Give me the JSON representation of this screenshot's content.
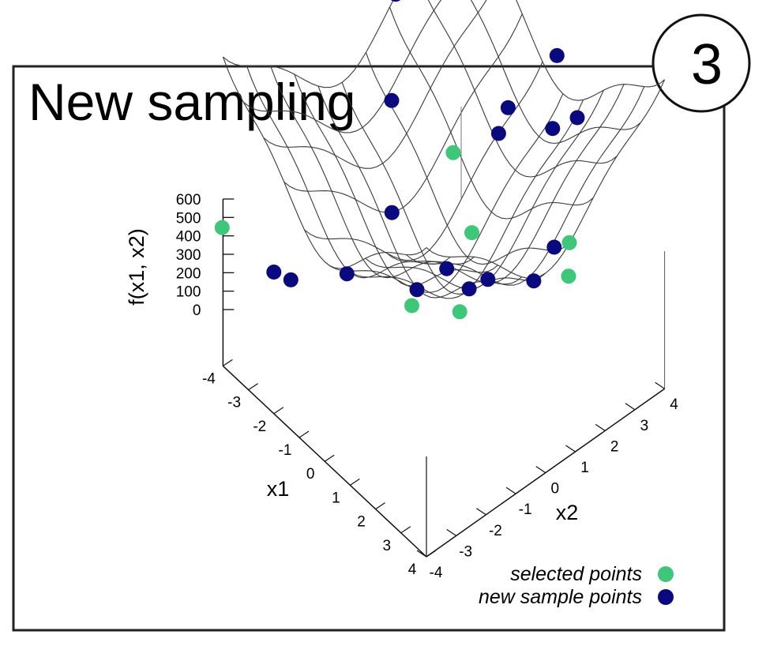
{
  "chart_data": {
    "type": "surface3d",
    "title": "New sampling",
    "badge": "3",
    "xlabel": "x1",
    "ylabel": "x2",
    "zlabel": "f(x1, x2)",
    "xlim": [
      -4,
      4
    ],
    "ylim": [
      -4,
      4
    ],
    "zlim": [
      0,
      600
    ],
    "x_ticks": [
      "-4",
      "-3",
      "-2",
      "-1",
      "0",
      "1",
      "2",
      "3",
      "4"
    ],
    "y_ticks": [
      "-4",
      "-3",
      "-2",
      "-1",
      "0",
      "1",
      "2",
      "3",
      "4"
    ],
    "z_ticks": [
      "600",
      "500",
      "400",
      "300",
      "200",
      "100",
      "0"
    ],
    "grid": true,
    "legend_position": "bottom-right",
    "colors": {
      "selected": "#3cc878",
      "new_sample": "#0a0a80",
      "mesh": "#333333"
    },
    "series": [
      {
        "name": "selected points",
        "color": "#3cc878",
        "points": [
          {
            "x1": -3.8,
            "x2": -4.2,
            "z": 120
          },
          {
            "x1": -1.5,
            "x2": 4.2,
            "z": 580
          },
          {
            "x1": -0.8,
            "x2": 1.0,
            "z": 250
          },
          {
            "x1": 0.4,
            "x2": 0.6,
            "z": 100
          },
          {
            "x1": 1.2,
            "x2": -2.1,
            "z": 110
          },
          {
            "x1": 2.5,
            "x2": -1.6,
            "z": 160
          },
          {
            "x1": 2.8,
            "x2": 1.8,
            "z": 60
          },
          {
            "x1": 4.0,
            "x2": 0.8,
            "z": 350
          }
        ]
      },
      {
        "name": "new sample points",
        "color": "#0a0a80",
        "points": [
          {
            "x1": -3.3,
            "x2": 1.2,
            "z": 580
          },
          {
            "x1": -2.4,
            "x2": 0.3,
            "z": 350
          },
          {
            "x1": -2.0,
            "x2": -4.0,
            "z": 100
          },
          {
            "x1": -1.8,
            "x2": -3.6,
            "z": 60
          },
          {
            "x1": -1.0,
            "x2": -2.4,
            "z": 60
          },
          {
            "x1": 0.7,
            "x2": -1.5,
            "z": 80
          },
          {
            "x1": 0.7,
            "x2": -0.5,
            "z": 80
          },
          {
            "x1": -0.4,
            "x2": -1.4,
            "z": 250
          },
          {
            "x1": 0.4,
            "x2": 1.5,
            "z": 380
          },
          {
            "x1": 1.7,
            "x2": -0.6,
            "z": 100
          },
          {
            "x1": 2.2,
            "x2": -0.4,
            "z": 160
          },
          {
            "x1": -0.4,
            "x2": 2.5,
            "z": 330
          },
          {
            "x1": 2.0,
            "x2": 2.0,
            "z": 80
          },
          {
            "x1": 0.8,
            "x2": 3.8,
            "z": 300
          },
          {
            "x1": 0.0,
            "x2": 3.8,
            "z": 450
          },
          {
            "x1": 0.3,
            "x2": 3.4,
            "z": 250
          },
          {
            "x1": 2.6,
            "x2": 0.8,
            "z": 100
          }
        ]
      }
    ]
  }
}
